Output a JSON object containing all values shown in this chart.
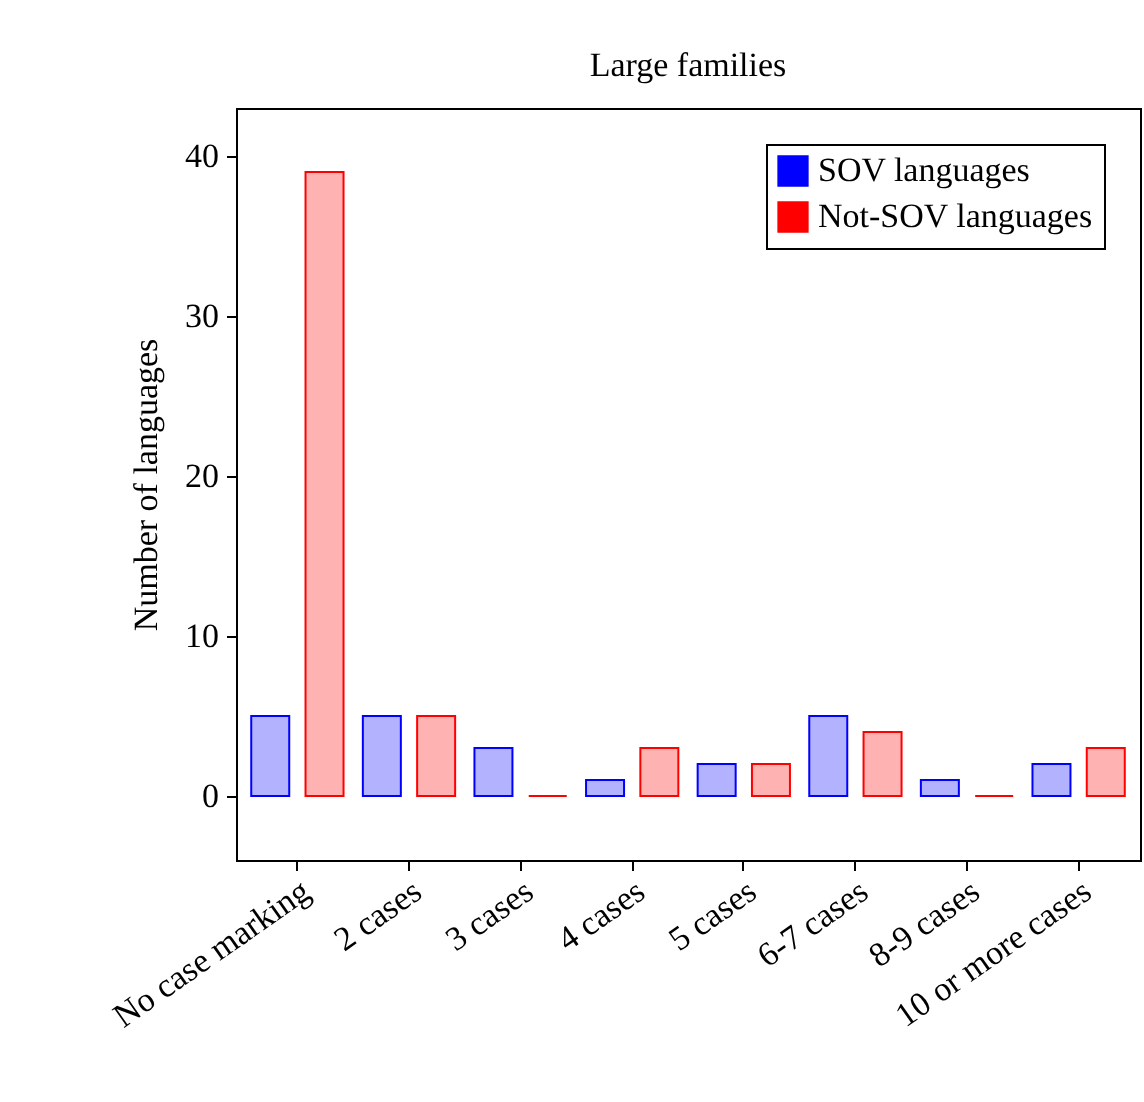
{
  "chart_data": {
    "type": "bar",
    "title": "Large families",
    "ylabel": "Number of languages",
    "categories": [
      "No case marking",
      "2 cases",
      "3 cases",
      "4 cases",
      "5 cases",
      "6-7 cases",
      "8-9 cases",
      "10 or more cases"
    ],
    "series": [
      {
        "name": "SOV languages",
        "color": "#0000ff",
        "values": [
          5,
          5,
          3,
          1,
          2,
          5,
          1,
          2
        ]
      },
      {
        "name": "Not-SOV languages",
        "color": "#ff0000",
        "values": [
          39,
          5,
          0,
          3,
          2,
          4,
          0,
          3
        ]
      }
    ],
    "ylim": [
      -4,
      43
    ],
    "yticks": [
      0,
      10,
      20,
      30,
      40
    ],
    "grid": false,
    "legend": "top right"
  }
}
